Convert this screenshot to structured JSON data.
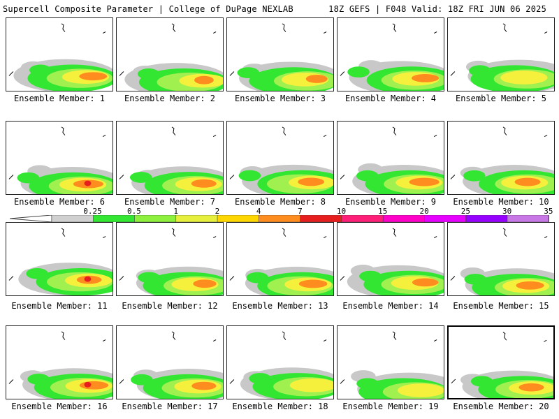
{
  "header": {
    "title_left": "Supercell Composite Parameter | College of DuPage NEXLAB",
    "title_right": "18Z GEFS | F048 Valid: 18Z FRI JUN 06 2025"
  },
  "members": [
    {
      "label": "Ensemble Member: 1"
    },
    {
      "label": "Ensemble Member: 2"
    },
    {
      "label": "Ensemble Member: 3"
    },
    {
      "label": "Ensemble Member: 4"
    },
    {
      "label": "Ensemble Member: 5"
    },
    {
      "label": "Ensemble Member: 6"
    },
    {
      "label": "Ensemble Member: 7"
    },
    {
      "label": "Ensemble Member: 8"
    },
    {
      "label": "Ensemble Member: 9"
    },
    {
      "label": "Ensemble Member: 10"
    },
    {
      "label": "Ensemble Member: 11"
    },
    {
      "label": "Ensemble Member: 12"
    },
    {
      "label": "Ensemble Member: 13"
    },
    {
      "label": "Ensemble Member: 14"
    },
    {
      "label": "Ensemble Member: 15"
    },
    {
      "label": "Ensemble Member: 16"
    },
    {
      "label": "Ensemble Member: 17"
    },
    {
      "label": "Ensemble Member: 18"
    },
    {
      "label": "Ensemble Member: 19"
    },
    {
      "label": "Ensemble Member: 20"
    }
  ],
  "colorbar": {
    "ticks": [
      "0.25",
      "0.5",
      "1",
      "2",
      "4",
      "7",
      "10",
      "15",
      "20",
      "25",
      "30",
      "35"
    ],
    "colors": [
      "#d0d0d0",
      "#32e632",
      "#8cf03c",
      "#e6f03c",
      "#ffd700",
      "#ff8c1e",
      "#e61e1e",
      "#ff1e78",
      "#ff00c8",
      "#e600ff",
      "#9600ff",
      "#c878e6",
      "#3cf0ff"
    ]
  },
  "map_colors": {
    "gray": "#c8c8c8",
    "green": "#32e632",
    "lightgreen": "#a0f050",
    "yellow": "#f5f03c",
    "orange": "#ff8c1e",
    "red": "#e61e1e"
  }
}
